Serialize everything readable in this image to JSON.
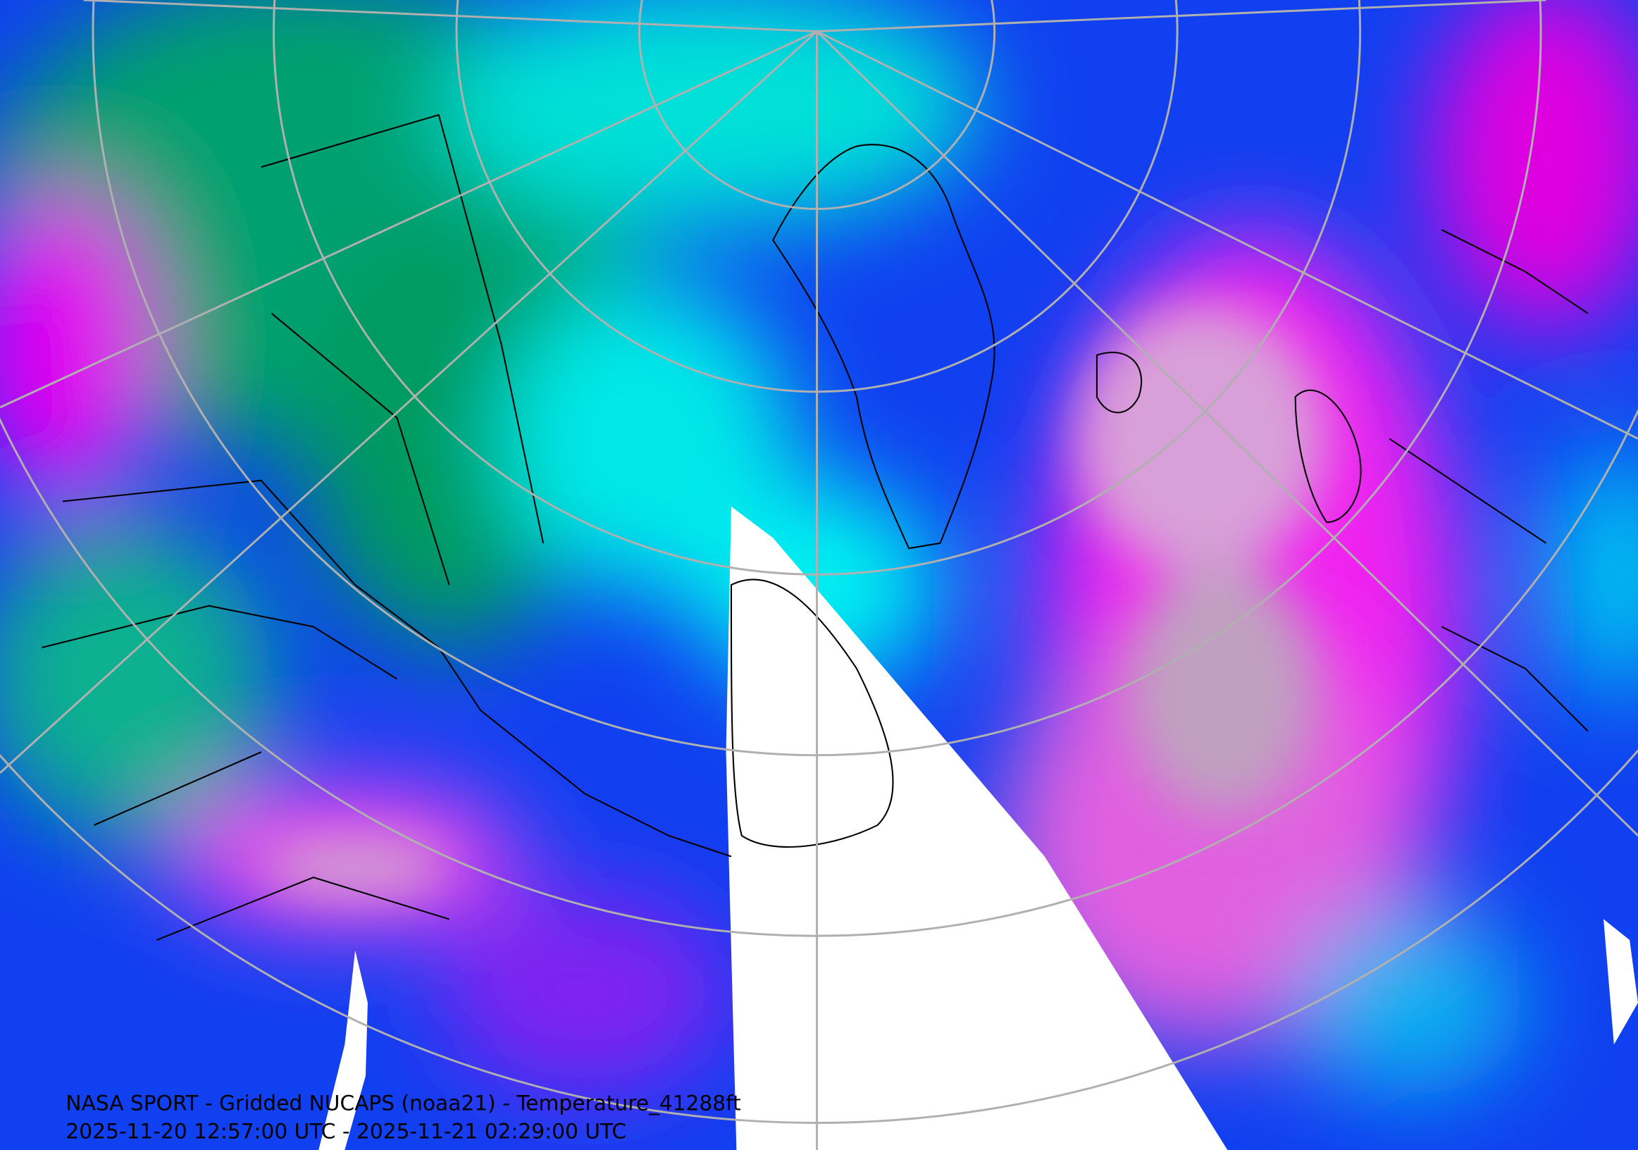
{
  "map": {
    "title": "NASA SPORT - Gridded NUCAPS (noaa21) - Temperature_41288ft",
    "time_range": "2025-11-20 12:57:00 UTC - 2025-11-21 02:29:00 UTC"
  }
}
